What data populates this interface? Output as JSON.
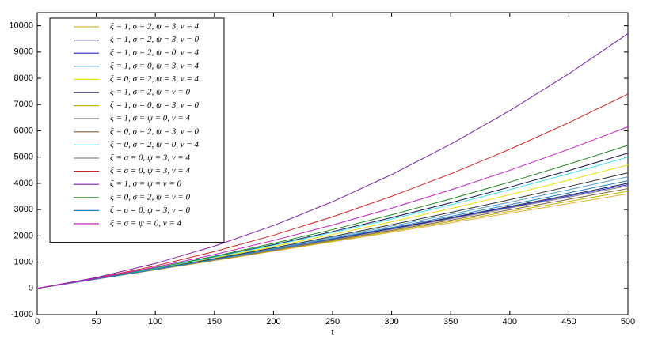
{
  "chart_data": {
    "type": "line",
    "x_label": "t",
    "x": [
      0,
      50,
      100,
      150,
      200,
      250,
      300,
      350,
      400,
      450,
      500
    ],
    "xlim": [
      0,
      500
    ],
    "xticks": [
      0,
      50,
      100,
      150,
      200,
      250,
      300,
      350,
      400,
      450,
      500
    ],
    "ylim": [
      -1000,
      10500
    ],
    "yticks": [
      -1000,
      0,
      1000,
      2000,
      3000,
      4000,
      5000,
      6000,
      7000,
      8000,
      9000,
      10000
    ],
    "grid": false,
    "legend": "upper left",
    "series": [
      {
        "name": "ξ = 1, σ = 2, ψ = 3, ν = 4",
        "color": "#e0b040",
        "values": [
          0,
          351,
          704,
          1059,
          1416,
          1775,
          2136,
          2499,
          2864,
          3231,
          3600
        ]
      },
      {
        "name": "ξ = 1, σ = 2, ψ = 3, ν = 0",
        "color": "#1e1e5a",
        "values": [
          0,
          355,
          720,
          1095,
          1480,
          1875,
          2280,
          2695,
          3120,
          3555,
          4000
        ]
      },
      {
        "name": "ξ = 1, σ = 2, ψ = 0, ν = 4",
        "color": "#2a2ac8",
        "values": [
          0,
          355,
          718,
          1091,
          1472,
          1863,
          2262,
          2671,
          3088,
          3515,
          3950
        ]
      },
      {
        "name": "ξ = 1, σ = 0, ψ = 3, ν = 4",
        "color": "#5aa0d2",
        "values": [
          0,
          358,
          730,
          1118,
          1520,
          1938,
          2370,
          2818,
          3280,
          3758,
          4250
        ]
      },
      {
        "name": "ξ = 0, σ = 2, ψ = 3, ν = 4",
        "color": "#e6e000",
        "values": [
          0,
          362,
          748,
          1158,
          1592,
          2050,
          2532,
          3038,
          3568,
          4122,
          4700
        ]
      },
      {
        "name": "ξ = 1, σ = 2, ψ = ν = 0",
        "color": "#12124e",
        "values": [
          0,
          367,
          766,
          1199,
          1664,
          2163,
          2694,
          3259,
          3856,
          4487,
          5150
        ]
      },
      {
        "name": "ξ = 1, σ = 0, ψ = 3, ν = 0",
        "color": "#c0b800",
        "values": [
          0,
          352,
          708,
          1068,
          1432,
          1800,
          2172,
          2548,
          2928,
          3312,
          3700
        ]
      },
      {
        "name": "ξ = 1, σ = ψ = 0, ν = 4",
        "color": "#333333",
        "values": [
          0,
          359,
          736,
          1131,
          1544,
          1975,
          2424,
          2891,
          3376,
          3879,
          4400
        ]
      },
      {
        "name": "ξ = 0, σ = 2, ψ = 3, ν = 0",
        "color": "#806040",
        "values": [
          0,
          353,
          712,
          1077,
          1448,
          1825,
          2208,
          2597,
          2992,
          3393,
          3800
        ]
      },
      {
        "name": "ξ = 0, σ = 2, ψ = 0, ν = 4",
        "color": "#3ee0e8",
        "values": [
          0,
          365,
          760,
          1185,
          1640,
          2125,
          2640,
          3185,
          3760,
          4365,
          5000
        ]
      },
      {
        "name": "ξ = σ = 0, ψ = 3, ν = 4",
        "color": "#8a8a8a",
        "values": [
          0,
          354,
          716,
          1086,
          1464,
          1850,
          2244,
          2646,
          3056,
          3474,
          3900
        ]
      },
      {
        "name": "ξ = σ = 0, ψ = 3, ν = 4",
        "color": "#d42020",
        "values": [
          0,
          389,
          856,
          1401,
          2024,
          2725,
          3504,
          4361,
          5296,
          6309,
          7400
        ]
      },
      {
        "name": "ξ = 1, σ = ψ = ν = 0",
        "color": "#8020a8",
        "values": [
          0,
          412,
          948,
          1608,
          2392,
          3300,
          4332,
          5488,
          6768,
          8172,
          9700
        ]
      },
      {
        "name": "ξ = 0, σ = 2, ψ = ν = 0",
        "color": "#208a20",
        "values": [
          0,
          370,
          778,
          1226,
          1712,
          2238,
          2802,
          3406,
          4048,
          4730,
          5450
        ]
      },
      {
        "name": "ξ = σ = 0, ψ = 3, ν = 0",
        "color": "#2080c0",
        "values": [
          0,
          356,
          724,
          1104,
          1496,
          1900,
          2316,
          2744,
          3184,
          3636,
          4100
        ]
      },
      {
        "name": "ξ = σ = ψ = 0, ν = 4",
        "color": "#c020c0",
        "values": [
          0,
          377,
          806,
          1289,
          1824,
          2413,
          3054,
          3749,
          4496,
          5297,
          6150
        ]
      }
    ]
  }
}
